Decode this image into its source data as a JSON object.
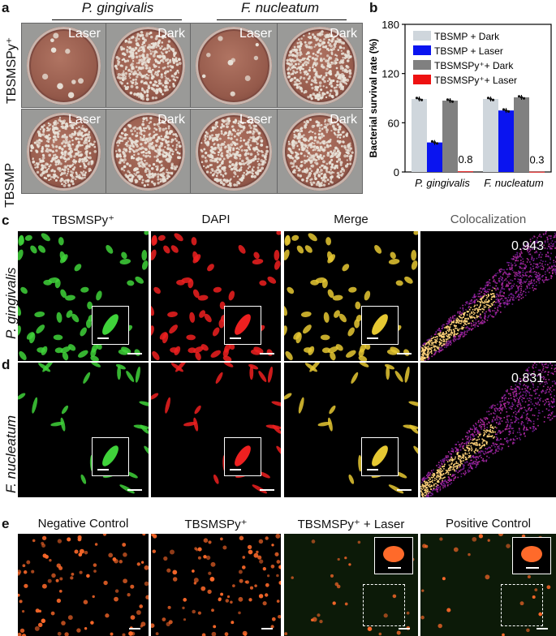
{
  "panels": {
    "a": "a",
    "b": "b",
    "c": "c",
    "d": "d",
    "e": "e"
  },
  "panel_a": {
    "species": [
      "P. gingivalis",
      "F. nucleatum"
    ],
    "rows": [
      "TBSMSPy⁺",
      "TBSMP"
    ],
    "tags": [
      "Laser",
      "Dark",
      "Laser",
      "Dark"
    ],
    "colors": {
      "plate": "#955a4b",
      "colony": "#e8e2d8",
      "bg": "#9a9a98"
    }
  },
  "chart_data": {
    "type": "bar",
    "categories": [
      "P. gingivalis",
      "F. nucleatum"
    ],
    "series": [
      {
        "name": "TBSMP + Dark",
        "color": "#cfd6dc",
        "values": [
          89,
          89
        ]
      },
      {
        "name": "TBSMP + Laser",
        "color": "#0a14f0",
        "values": [
          36,
          75
        ]
      },
      {
        "name": "TBSMSPy⁺+ Dark",
        "color": "#808080",
        "values": [
          87,
          91
        ]
      },
      {
        "name": "TBSMSPy⁺+ Laser",
        "color": "#ee1111",
        "values": [
          0.8,
          0.3
        ]
      }
    ],
    "data_labels": [
      "0.8",
      "0.3"
    ],
    "ylabel": "Bacterial survival rate (%)",
    "ylim": [
      0,
      180
    ],
    "yticks": [
      "0",
      "60",
      "120",
      "180"
    ],
    "legend_position": "top-right"
  },
  "panel_c": {
    "columns": [
      "TBSMSPy⁺",
      "DAPI",
      "Merge",
      "Colocalization"
    ],
    "row_label": "P. gingivalis",
    "coefficient": "0.943"
  },
  "panel_d": {
    "row_label": "F. nucleatum",
    "coefficient": "0.831"
  },
  "panel_e": {
    "columns": [
      "Negative Control",
      "TBSMSPy⁺",
      "TBSMSPy⁺ + Laser",
      "Positive Control"
    ]
  },
  "colors": {
    "green": "#3fd23a",
    "red": "#ee2020",
    "merge": "#e6c832",
    "orange": "#ff6a2a"
  }
}
